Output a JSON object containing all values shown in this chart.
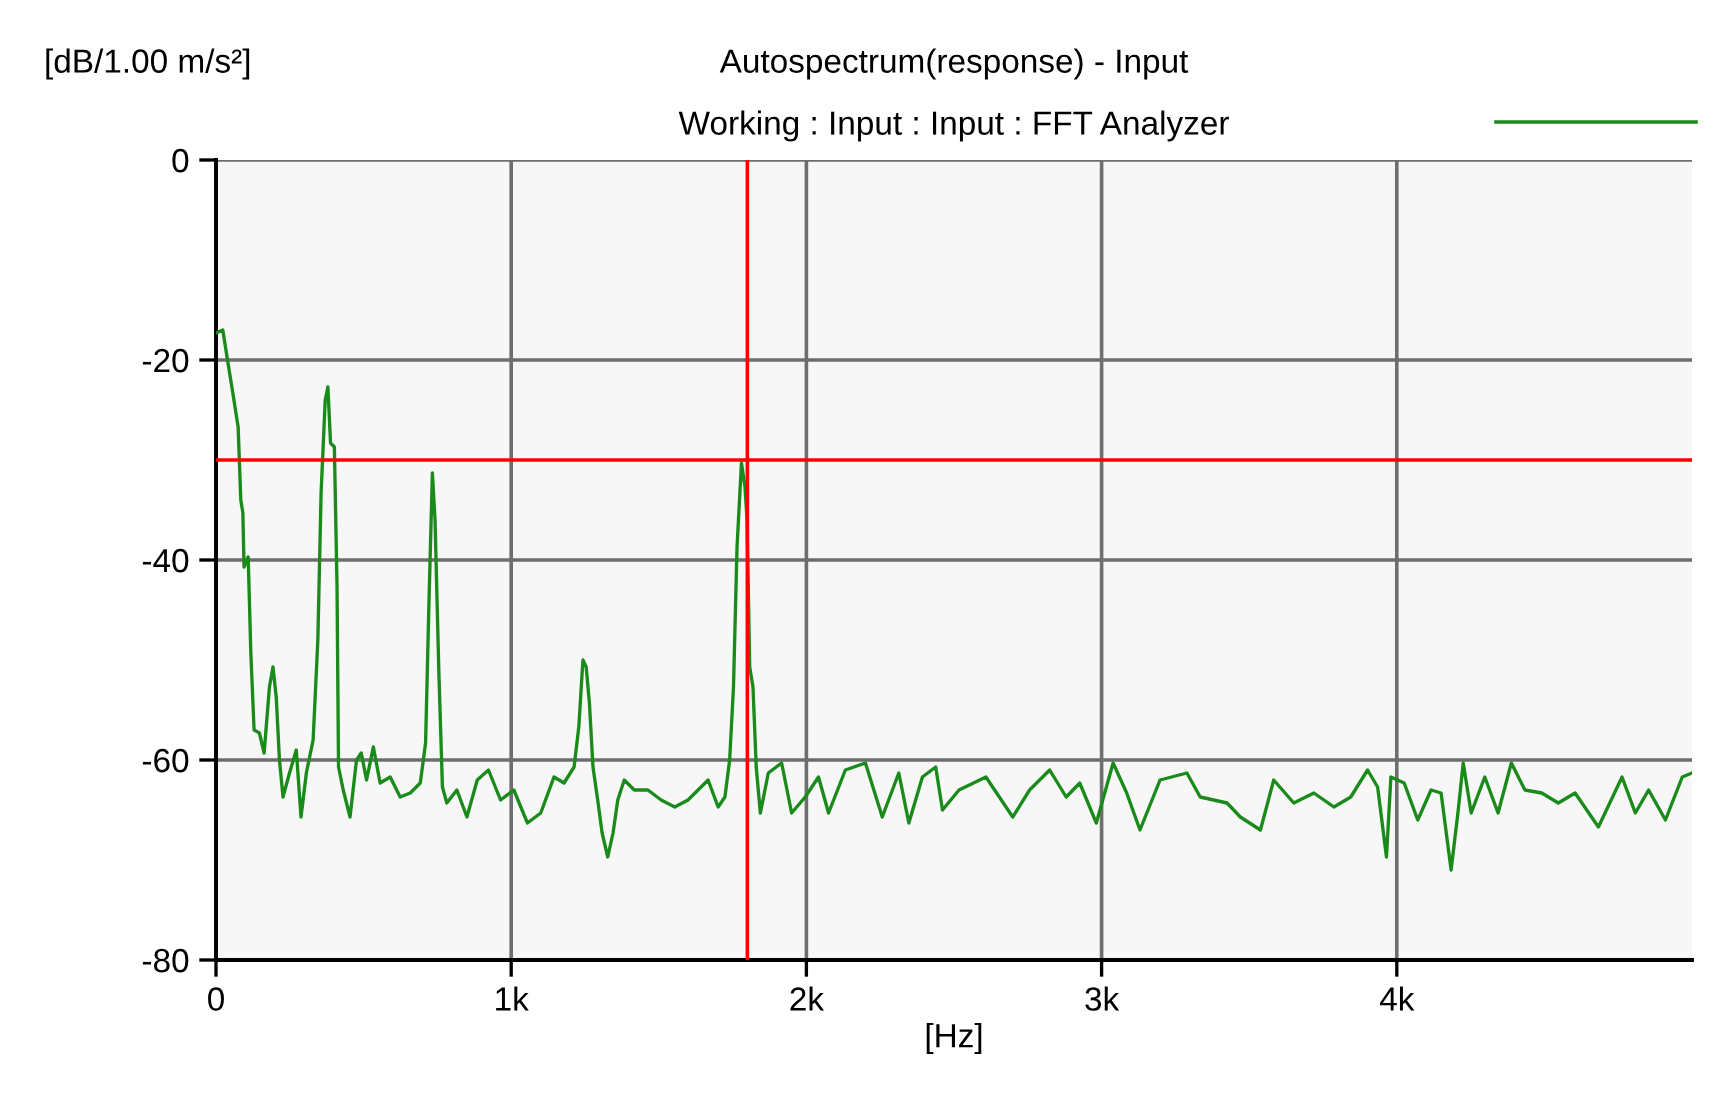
{
  "chart_data": {
    "type": "line",
    "title": "Autospectrum(response) - Input",
    "subtitle": "Working : Input : Input : FFT Analyzer",
    "ylabel": "[dB/1.00 m/s²]",
    "xlabel": "[Hz]",
    "xlim": [
      0,
      5000
    ],
    "ylim": [
      -80,
      0
    ],
    "xticks": [
      0,
      {
        "value": 1000,
        "label": "1k"
      },
      {
        "value": 2000,
        "label": "2k"
      },
      {
        "value": 3000,
        "label": "3k"
      },
      {
        "value": 4000,
        "label": "4k"
      }
    ],
    "yticks": [
      0,
      -20,
      -40,
      -60,
      -80
    ],
    "grid": true,
    "ref_lines": [
      {
        "axis": "x",
        "value": 1800,
        "color": "#ff0000"
      },
      {
        "axis": "y",
        "value": -30,
        "color": "#ff0000"
      }
    ],
    "series": [
      {
        "color": "#1a8a1a",
        "x": [
          0,
          23,
          39,
          57,
          75,
          84,
          91,
          95,
          109,
          118,
          129,
          147,
          163,
          181,
          193,
          204,
          215,
          227,
          249,
          272,
          288,
          306,
          329,
          345,
          356,
          370,
          379,
          388,
          401,
          410,
          415,
          431,
          454,
          476,
          492,
          510,
          533,
          556,
          590,
          624,
          658,
          692,
          710,
          721,
          733,
          742,
          755,
          767,
          782,
          816,
          850,
          885,
          923,
          964,
          1009,
          1055,
          1100,
          1145,
          1179,
          1213,
          1229,
          1243,
          1254,
          1265,
          1277,
          1293,
          1308,
          1327,
          1345,
          1361,
          1383,
          1417,
          1463,
          1508,
          1554,
          1599,
          1633,
          1667,
          1701,
          1724,
          1740,
          1753,
          1765,
          1780,
          1792,
          1799,
          1808,
          1819,
          1830,
          1844,
          1871,
          1916,
          1950,
          1996,
          2041,
          2075,
          2132,
          2200,
          2257,
          2313,
          2347,
          2393,
          2438,
          2461,
          2517,
          2608,
          2699,
          2756,
          2824,
          2880,
          2926,
          2982,
          3039,
          3085,
          3130,
          3198,
          3289,
          3334,
          3425,
          3470,
          3538,
          3583,
          3651,
          3719,
          3787,
          3844,
          3901,
          3935,
          3965,
          3980,
          4025,
          4071,
          4116,
          4150,
          4184,
          4207,
          4225,
          4252,
          4298,
          4343,
          4388,
          4434,
          4491,
          4547,
          4604,
          4683,
          4763,
          4808,
          4853,
          4910,
          4967,
          5000
        ],
        "values": [
          -17.3,
          -17,
          -20,
          -23.3,
          -26.7,
          -34,
          -35.3,
          -40.7,
          -39.7,
          -49.3,
          -57,
          -57.3,
          -59.3,
          -52.7,
          -50.7,
          -53.7,
          -60,
          -63.7,
          -61.3,
          -59,
          -65.7,
          -61.3,
          -58,
          -48,
          -33.3,
          -24,
          -22.7,
          -28.3,
          -28.7,
          -42.7,
          -60.7,
          -63,
          -65.7,
          -60,
          -59.3,
          -62,
          -58.7,
          -62.3,
          -61.7,
          -63.7,
          -63.3,
          -62.3,
          -58.3,
          -44.7,
          -31.3,
          -36,
          -51.3,
          -62.7,
          -64.3,
          -63,
          -65.7,
          -62,
          -61,
          -64,
          -63,
          -66.3,
          -65.3,
          -61.7,
          -62.3,
          -60.7,
          -56.7,
          -50,
          -50.7,
          -54.3,
          -60.7,
          -64,
          -67.3,
          -69.7,
          -67.3,
          -64,
          -62,
          -63,
          -63,
          -64,
          -64.7,
          -64,
          -63,
          -62,
          -64.7,
          -63.7,
          -60,
          -52.7,
          -38.7,
          -30.3,
          -32.7,
          -36,
          -50.7,
          -52.7,
          -60.7,
          -65.3,
          -61.3,
          -60.3,
          -65.3,
          -63.7,
          -61.7,
          -65.3,
          -61,
          -60.3,
          -65.7,
          -61.3,
          -66.3,
          -61.7,
          -60.7,
          -65,
          -63,
          -61.7,
          -65.7,
          -63,
          -61,
          -63.7,
          -62.3,
          -66.3,
          -60.3,
          -63.3,
          -67,
          -62,
          -61.3,
          -63.7,
          -64.3,
          -65.7,
          -67,
          -62,
          -64.3,
          -63.3,
          -64.7,
          -63.7,
          -61,
          -62.7,
          -69.7,
          -61.7,
          -62.3,
          -66,
          -63,
          -63.3,
          -71,
          -65.3,
          -60.3,
          -65.3,
          -61.7,
          -65.3,
          -60.3,
          -63,
          -63.3,
          -64.3,
          -63.3,
          -66.7,
          -61.7,
          -65.3,
          -63,
          -66,
          -61.7,
          -61.3
        ]
      }
    ]
  }
}
